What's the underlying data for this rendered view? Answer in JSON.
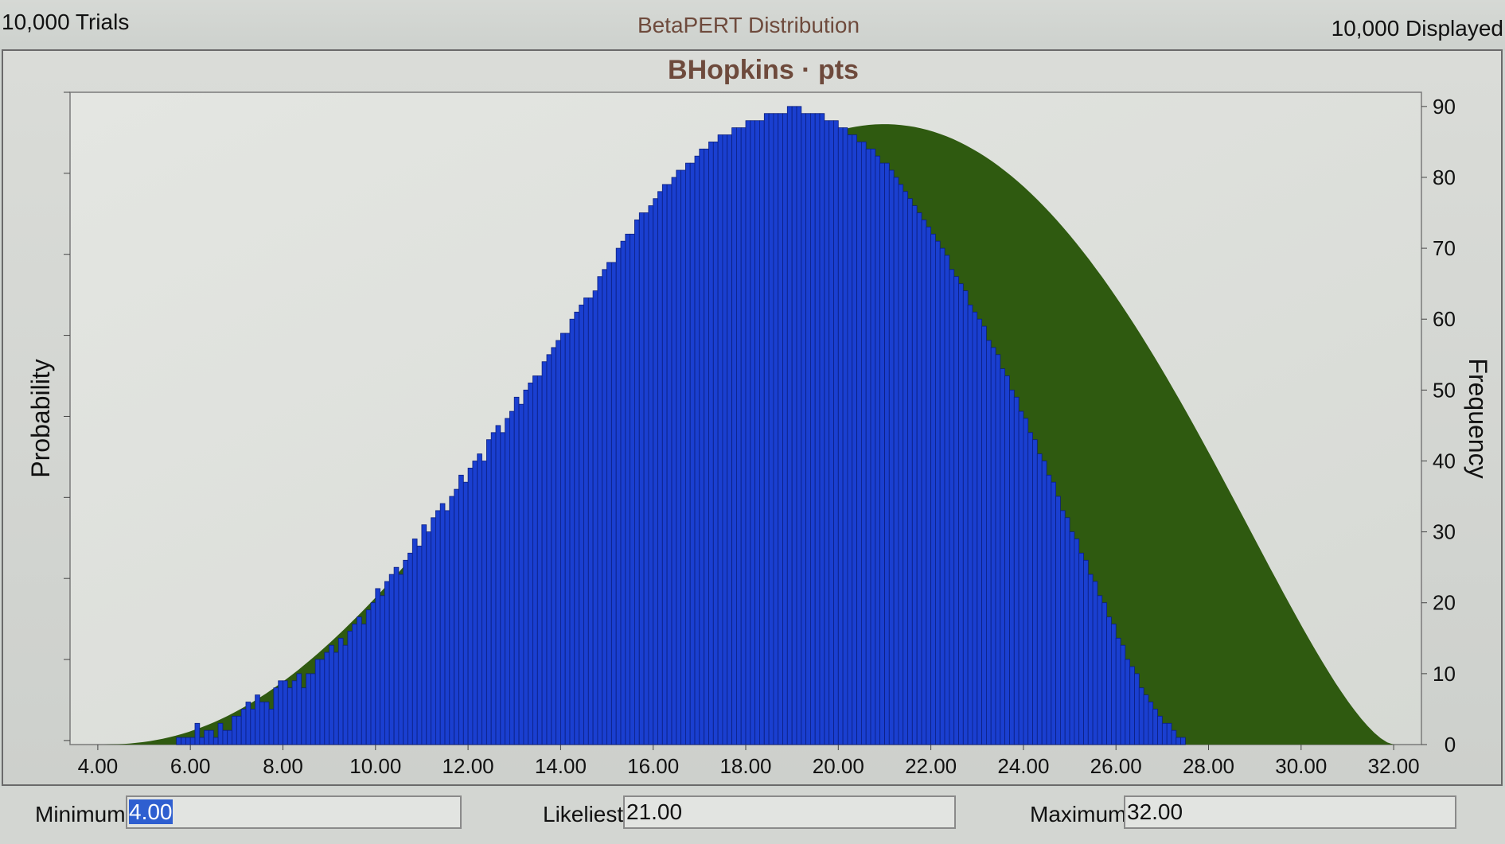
{
  "header": {
    "trials": "10,000 Trials",
    "distribution": "BetaPERT Distribution",
    "displayed": "10,000 Displayed"
  },
  "colors": {
    "bars": "#1a3fd0",
    "bar_edge": "#0b1f80",
    "fit_curve": "#2f5a10",
    "title": "#6e4a3c"
  },
  "chart_data": {
    "type": "bar",
    "title": "BHopkins · pts",
    "ylabel": "Probability",
    "y2label": "Frequency",
    "xlim": [
      3.4,
      32.6
    ],
    "ylim": [
      0,
      92
    ],
    "xticks": [
      "4.00",
      "6.00",
      "8.00",
      "10.00",
      "12.00",
      "14.00",
      "16.00",
      "18.00",
      "20.00",
      "22.00",
      "24.00",
      "26.00",
      "28.00",
      "30.00",
      "32.00"
    ],
    "xtick_values": [
      4,
      6,
      8,
      10,
      12,
      14,
      16,
      18,
      20,
      22,
      24,
      26,
      28,
      30,
      32
    ],
    "yticks": [
      "0",
      "10",
      "20",
      "30",
      "40",
      "50",
      "60",
      "70",
      "80",
      "90"
    ],
    "ytick_values": [
      0,
      10,
      20,
      30,
      40,
      50,
      60,
      70,
      80,
      90
    ],
    "bin_width": 0.1,
    "series": [
      {
        "values": [
          0,
          0,
          0,
          0,
          0,
          0,
          0,
          1,
          1,
          1,
          1,
          3,
          1,
          2,
          2,
          1,
          3,
          2,
          2,
          4,
          4,
          5,
          6,
          5,
          7,
          6,
          6,
          5,
          8,
          9,
          9,
          8,
          9,
          10,
          8,
          10,
          10,
          12,
          12,
          13,
          14,
          13,
          15,
          14,
          16,
          17,
          18,
          17,
          19,
          20,
          22,
          21,
          23,
          24,
          25,
          24,
          26,
          27,
          29,
          28,
          31,
          30,
          32,
          33,
          34,
          33,
          35,
          36,
          38,
          37,
          39,
          40,
          41,
          40,
          43,
          44,
          45,
          44,
          46,
          47,
          49,
          48,
          50,
          51,
          52,
          52,
          54,
          55,
          56,
          57,
          58,
          58,
          60,
          61,
          62,
          63,
          63,
          64,
          66,
          67,
          68,
          68,
          70,
          71,
          72,
          72,
          74,
          75,
          75,
          76,
          77,
          78,
          79,
          79,
          80,
          81,
          81,
          82,
          82,
          83,
          84,
          84,
          85,
          85,
          86,
          86,
          86,
          87,
          87,
          87,
          88,
          88,
          88,
          88,
          89,
          89,
          89,
          89,
          89,
          90,
          90,
          90,
          89,
          89,
          89,
          89,
          89,
          88,
          88,
          88,
          87,
          87,
          86,
          86,
          85,
          85,
          84,
          84,
          83,
          82,
          82,
          81,
          80,
          79,
          78,
          77,
          76,
          75,
          74,
          73,
          72,
          71,
          70,
          69,
          67,
          66,
          65,
          64,
          62,
          61,
          60,
          59,
          57,
          56,
          55,
          53,
          52,
          50,
          49,
          47,
          46,
          44,
          43,
          41,
          40,
          38,
          37,
          35,
          33,
          32,
          30,
          29,
          27,
          26,
          24,
          23,
          21,
          20,
          18,
          17,
          15,
          14,
          12,
          11,
          10,
          8,
          7,
          6,
          5,
          4,
          3,
          3,
          2,
          1,
          1,
          0,
          0
        ],
        "fit_peak": 87.5
      }
    ]
  },
  "inputs": {
    "minimum_label": "Minimum",
    "minimum_value": "4.00",
    "likeliest_label": "Likeliest",
    "likeliest_value": "21.00",
    "maximum_label": "Maximum",
    "maximum_value": "32.00"
  }
}
